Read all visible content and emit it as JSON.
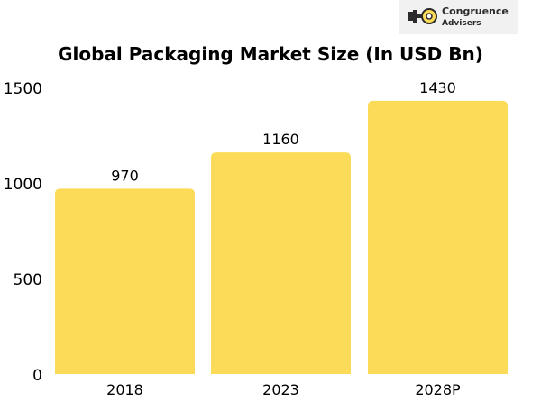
{
  "logo": {
    "line1": "Congruence",
    "line2": "Advisers"
  },
  "colors": {
    "bar": "#fcdb58",
    "key": "#fcdb58",
    "logo_dark": "#2b2b2b",
    "text": "#000000"
  },
  "chart_data": {
    "type": "bar",
    "title": "Global Packaging Market Size (In USD Bn)",
    "xlabel": "",
    "ylabel": "",
    "categories": [
      "2018",
      "2023",
      "2028P"
    ],
    "values": [
      970,
      1160,
      1430
    ],
    "ylim": [
      0,
      1500
    ],
    "yticks": [
      0,
      500,
      1000,
      1500
    ],
    "grid": false,
    "data_labels": true
  }
}
